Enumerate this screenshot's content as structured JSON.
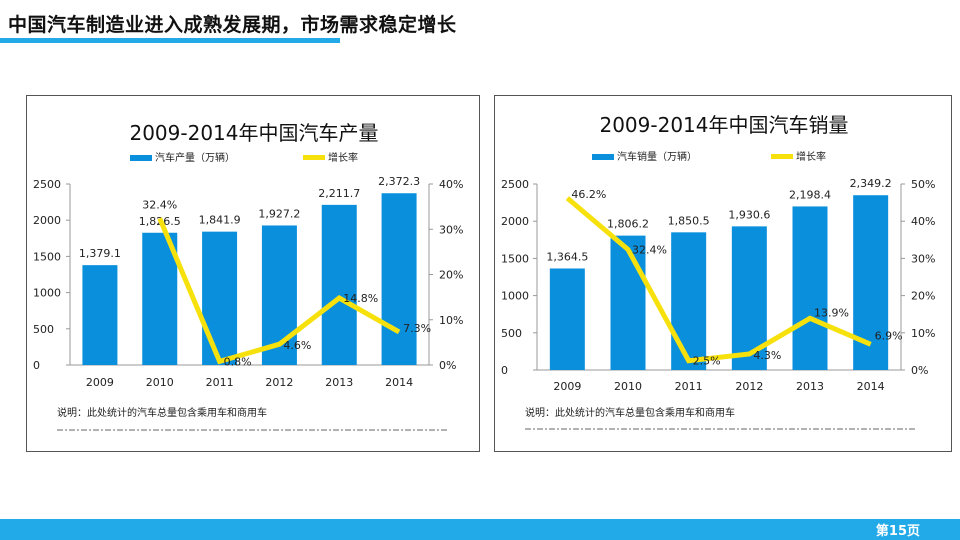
{
  "header": {
    "title": "中国汽车制造业进入成熟发展期，市场需求稳定增长"
  },
  "footer": {
    "page_label": "第15页"
  },
  "colors": {
    "bar": "#0a8fdc",
    "line": "#f7e10d",
    "accent": "#22a9e8"
  },
  "chart_data": [
    {
      "type": "bar",
      "title": "2009-2014年中国汽车产量",
      "categories": [
        "2009",
        "2010",
        "2011",
        "2012",
        "2013",
        "2014"
      ],
      "series": [
        {
          "name": "汽车产量（万辆）",
          "type": "bar",
          "axis": "left",
          "values": [
            1379.1,
            1826.5,
            1841.9,
            1927.2,
            2211.7,
            2372.3
          ],
          "labels": [
            "1,379.1",
            "1,826.5",
            "1,841.9",
            "1,927.2",
            "2,211.7",
            "2,372.3"
          ]
        },
        {
          "name": "增长率",
          "type": "line",
          "axis": "right",
          "values": [
            null,
            32.4,
            0.8,
            4.6,
            14.8,
            7.3
          ],
          "labels": [
            "",
            "32.4%",
            "0.8%",
            "4.6%",
            "14.8%",
            "7.3%"
          ]
        }
      ],
      "ylim_left": [
        0,
        2500
      ],
      "yticks_left": [
        "0",
        "500",
        "1000",
        "1500",
        "2000",
        "2500"
      ],
      "ylim_right": [
        0,
        40
      ],
      "yticks_right": [
        "0%",
        "10%",
        "20%",
        "30%",
        "40%"
      ],
      "legend": "top-center",
      "note": "说明：此处统计的汽车总量包含乘用车和商用车"
    },
    {
      "type": "bar",
      "title": "2009-2014年中国汽车销量",
      "categories": [
        "2009",
        "2010",
        "2011",
        "2012",
        "2013",
        "2014"
      ],
      "series": [
        {
          "name": "汽车销量（万辆）",
          "type": "bar",
          "axis": "left",
          "values": [
            1364.5,
            1806.2,
            1850.5,
            1930.6,
            2198.4,
            2349.2
          ],
          "labels": [
            "1,364.5",
            "1,806.2",
            "1,850.5",
            "1,930.6",
            "2,198.4",
            "2,349.2"
          ]
        },
        {
          "name": "增长率",
          "type": "line",
          "axis": "right",
          "values": [
            46.2,
            32.4,
            2.5,
            4.3,
            13.9,
            6.9
          ],
          "labels": [
            "46.2%",
            "32.4%",
            "2.5%",
            "4.3%",
            "13.9%",
            "6.9%"
          ]
        }
      ],
      "ylim_left": [
        0,
        2500
      ],
      "yticks_left": [
        "0",
        "500",
        "1000",
        "1500",
        "2000",
        "2500"
      ],
      "ylim_right": [
        0,
        50
      ],
      "yticks_right": [
        "0%",
        "10%",
        "20%",
        "30%",
        "40%",
        "50%"
      ],
      "legend": "top-center",
      "note": "说明：此处统计的汽车总量包含乘用车和商用车"
    }
  ]
}
